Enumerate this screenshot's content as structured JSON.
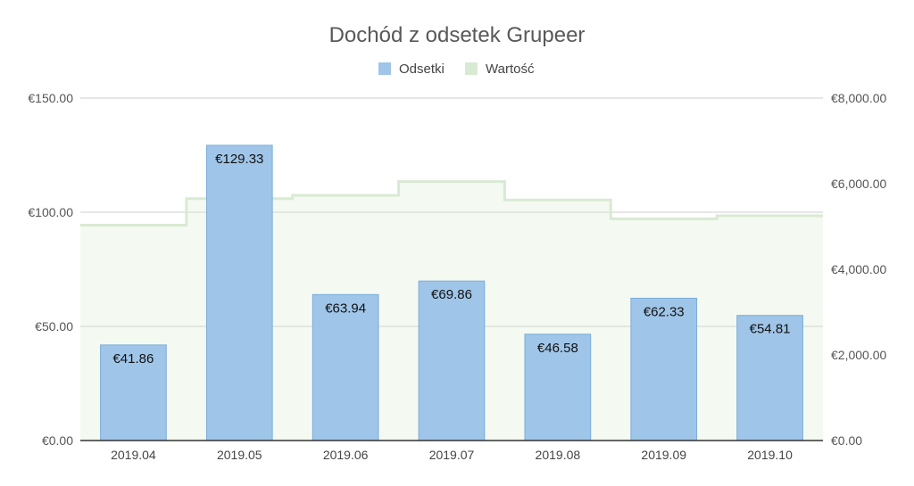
{
  "chart_data": {
    "type": "bar",
    "title": "Dochód z odsetek  Grupeer",
    "categories": [
      "2019.04",
      "2019.05",
      "2019.06",
      "2019.07",
      "2019.08",
      "2019.09",
      "2019.10"
    ],
    "series": [
      {
        "name": "Odsetki",
        "type": "bar",
        "axis": "left",
        "color": "#9fc5e8",
        "values": [
          41.86,
          129.33,
          63.94,
          69.86,
          46.58,
          62.33,
          54.81
        ],
        "labels": [
          "€41.86",
          "€129.33",
          "€63.94",
          "€69.86",
          "€46.58",
          "€62.33",
          "€54.81"
        ]
      },
      {
        "name": "Wartość",
        "type": "stepped-area",
        "axis": "right",
        "color": "#d9ead3",
        "values": [
          5030,
          5650,
          5730,
          6050,
          5620,
          5180,
          5250
        ]
      }
    ],
    "left_axis": {
      "ylim": [
        0,
        150
      ],
      "ticks": [
        0,
        50,
        100,
        150
      ],
      "tick_labels": [
        "€0.00",
        "€50.00",
        "€100.00",
        "€150.00"
      ]
    },
    "right_axis": {
      "ylim": [
        0,
        8000
      ],
      "ticks": [
        0,
        2000,
        4000,
        6000,
        8000
      ],
      "tick_labels": [
        "€0.00",
        "€2,000.00",
        "€4,000.00",
        "€6,000.00",
        "€8,000.00"
      ]
    },
    "grid": true,
    "legend_position": "top"
  }
}
